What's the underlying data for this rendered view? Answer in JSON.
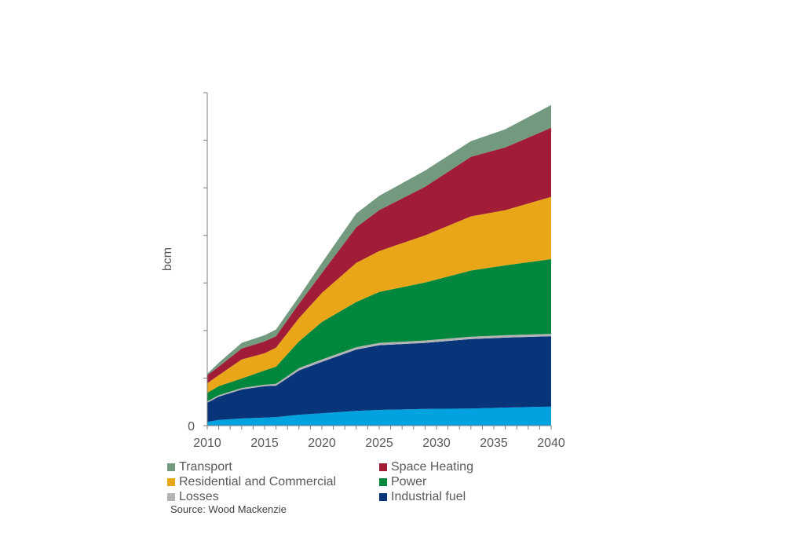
{
  "chart_data": {
    "type": "area",
    "stacked": true,
    "title": "",
    "xlabel": "",
    "ylabel": "bcm",
    "y_unit_note": "y-axis has unlabeled gridline ticks; values expressed in tick intervals",
    "ylim": [
      0,
      7
    ],
    "y_ticks": [
      0,
      1,
      2,
      3,
      4,
      5,
      6,
      7
    ],
    "y_tick_labels": [
      "0",
      "",
      "",
      "",
      "",
      "",
      "",
      ""
    ],
    "xlim": [
      2010,
      2040
    ],
    "x_tick_labels": [
      "2010",
      "2015",
      "2020",
      "2025",
      "2030",
      "2035",
      "2040"
    ],
    "x_minor_ticks": "yearly",
    "grid": false,
    "legend_position": "bottom",
    "x": [
      2010,
      2011,
      2013,
      2015,
      2016,
      2018,
      2020,
      2023,
      2025,
      2029,
      2033,
      2036,
      2040
    ],
    "series": [
      {
        "name": "",
        "in_legend": false,
        "color": "#00A3E0",
        "values": [
          0.08,
          0.12,
          0.15,
          0.17,
          0.18,
          0.23,
          0.26,
          0.31,
          0.33,
          0.35,
          0.36,
          0.38,
          0.4
        ]
      },
      {
        "name": "Industrial fuel",
        "in_legend": true,
        "color": "#08357A",
        "values": [
          0.4,
          0.49,
          0.61,
          0.66,
          0.66,
          0.93,
          1.08,
          1.29,
          1.36,
          1.39,
          1.46,
          1.47,
          1.48
        ]
      },
      {
        "name": "Losses",
        "in_legend": true,
        "color": "#B4B4B4",
        "values": [
          0.03,
          0.03,
          0.03,
          0.03,
          0.04,
          0.05,
          0.05,
          0.05,
          0.05,
          0.05,
          0.05,
          0.05,
          0.05
        ]
      },
      {
        "name": "Power",
        "in_legend": true,
        "color": "#00873E",
        "values": [
          0.18,
          0.19,
          0.2,
          0.3,
          0.36,
          0.56,
          0.79,
          0.95,
          1.07,
          1.22,
          1.39,
          1.47,
          1.57
        ]
      },
      {
        "name": "Residential and Commercial",
        "in_legend": true,
        "color": "#E9A618",
        "values": [
          0.2,
          0.23,
          0.4,
          0.36,
          0.4,
          0.49,
          0.61,
          0.82,
          0.86,
          0.99,
          1.14,
          1.16,
          1.31
        ]
      },
      {
        "name": "Space Heating",
        "in_legend": true,
        "color": "#A11C36",
        "values": [
          0.17,
          0.18,
          0.23,
          0.25,
          0.24,
          0.3,
          0.42,
          0.75,
          0.86,
          1.02,
          1.25,
          1.32,
          1.45
        ]
      },
      {
        "name": "Transport",
        "in_legend": true,
        "color": "#739A7F",
        "values": [
          0.03,
          0.08,
          0.12,
          0.13,
          0.14,
          0.15,
          0.21,
          0.29,
          0.3,
          0.34,
          0.33,
          0.38,
          0.48
        ]
      }
    ],
    "legend": [
      {
        "label": "Transport",
        "color": "#739A7F"
      },
      {
        "label": "Space Heating",
        "color": "#A11C36"
      },
      {
        "label": "Residential and Commercial",
        "color": "#E9A618"
      },
      {
        "label": "Power",
        "color": "#00873E"
      },
      {
        "label": "Losses",
        "color": "#B4B4B4"
      },
      {
        "label": "Industrial fuel",
        "color": "#08357A"
      }
    ],
    "source": "Source: Wood Mackenzie"
  }
}
